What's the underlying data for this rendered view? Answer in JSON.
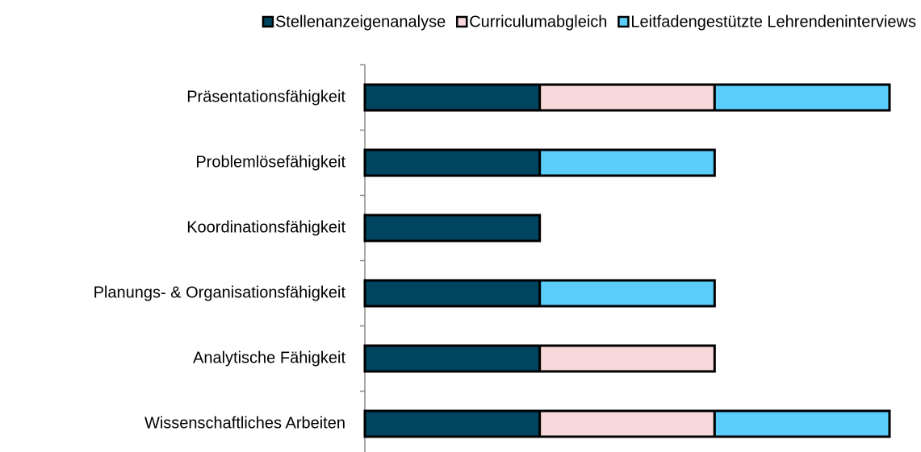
{
  "chart_data": {
    "type": "stacked-bar-horizontal",
    "categories": [
      "Präsentationsfähigkeit",
      "Problemlösefähigkeit",
      "Koordinationsfähigkeit",
      "Planungs- & Organisationsfähigkeit",
      "Analytische Fähigkeit",
      "Wissenschaftliches Arbeiten"
    ],
    "series": [
      {
        "name": "Stellenanzeigenanalyse",
        "color": "#00445f",
        "values": [
          1,
          1,
          1,
          1,
          1,
          1
        ]
      },
      {
        "name": "Curriculumabgleich",
        "color": "#f7d9db",
        "values": [
          1,
          0,
          0,
          0,
          1,
          1
        ]
      },
      {
        "name": "Leitfadengestützte Lehrendeninterviews",
        "color": "#5bcdfb",
        "values": [
          1,
          1,
          0,
          1,
          0,
          1
        ]
      }
    ],
    "xlim": [
      0,
      3
    ],
    "legend": "top"
  }
}
